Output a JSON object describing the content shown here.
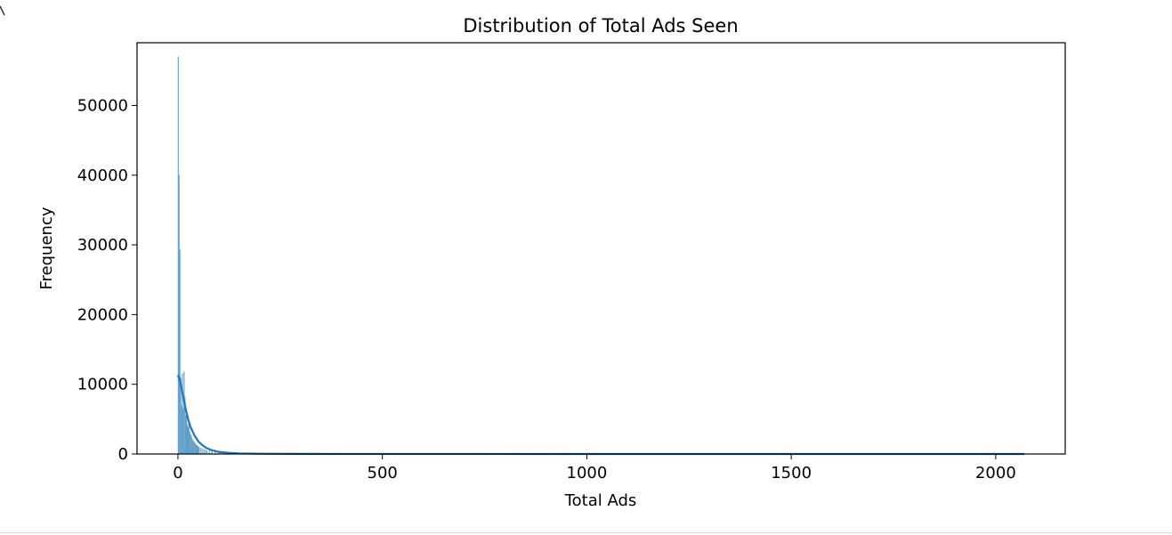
{
  "chart_data": {
    "type": "bar",
    "title": "Distribution of Total Ads Seen",
    "xlabel": "Total Ads",
    "ylabel": "Frequency",
    "xlim": [
      -100,
      2170
    ],
    "ylim": [
      0,
      59000
    ],
    "xticks": [
      0,
      500,
      1000,
      1500,
      2000
    ],
    "xtick_labels": [
      "0",
      "500",
      "1000",
      "1500",
      "2000"
    ],
    "yticks": [
      0,
      10000,
      20000,
      30000,
      40000,
      50000
    ],
    "ytick_labels": [
      "0",
      "10000",
      "20000",
      "30000",
      "40000",
      "50000"
    ],
    "grid": false,
    "histogram": {
      "bin_width": 2,
      "color": "#1f77b4",
      "bins": [
        {
          "x": 0,
          "count": 57000
        },
        {
          "x": 2,
          "count": 40000
        },
        {
          "x": 4,
          "count": 29300
        },
        {
          "x": 6,
          "count": 11000
        },
        {
          "x": 8,
          "count": 7000
        },
        {
          "x": 10,
          "count": 11500
        },
        {
          "x": 12,
          "count": 6500
        },
        {
          "x": 14,
          "count": 11800
        },
        {
          "x": 16,
          "count": 8200
        },
        {
          "x": 18,
          "count": 5500
        },
        {
          "x": 20,
          "count": 6000
        },
        {
          "x": 22,
          "count": 4200
        },
        {
          "x": 24,
          "count": 3800
        },
        {
          "x": 26,
          "count": 4500
        },
        {
          "x": 28,
          "count": 3200
        },
        {
          "x": 30,
          "count": 2800
        },
        {
          "x": 32,
          "count": 2600
        },
        {
          "x": 34,
          "count": 2200
        },
        {
          "x": 36,
          "count": 1900
        },
        {
          "x": 38,
          "count": 1800
        },
        {
          "x": 40,
          "count": 1600
        },
        {
          "x": 42,
          "count": 1400
        },
        {
          "x": 44,
          "count": 1300
        },
        {
          "x": 46,
          "count": 1200
        },
        {
          "x": 48,
          "count": 1100
        },
        {
          "x": 50,
          "count": 1000
        },
        {
          "x": 54,
          "count": 900
        },
        {
          "x": 58,
          "count": 800
        },
        {
          "x": 62,
          "count": 700
        },
        {
          "x": 66,
          "count": 600
        },
        {
          "x": 70,
          "count": 500
        },
        {
          "x": 76,
          "count": 420
        },
        {
          "x": 82,
          "count": 360
        },
        {
          "x": 90,
          "count": 300
        },
        {
          "x": 100,
          "count": 240
        },
        {
          "x": 115,
          "count": 180
        },
        {
          "x": 130,
          "count": 130
        },
        {
          "x": 150,
          "count": 90
        },
        {
          "x": 175,
          "count": 60
        },
        {
          "x": 200,
          "count": 40
        }
      ]
    },
    "kde": {
      "color": "#1f77b4",
      "x": [
        0,
        5,
        10,
        15,
        20,
        25,
        30,
        40,
        50,
        60,
        70,
        80,
        100,
        125,
        150,
        200,
        300,
        500,
        1000,
        1500,
        2070
      ],
      "y": [
        11300,
        10500,
        9100,
        7600,
        6200,
        5000,
        4000,
        2700,
        1800,
        1250,
        850,
        600,
        300,
        160,
        90,
        40,
        15,
        6,
        3,
        2,
        1
      ]
    }
  }
}
